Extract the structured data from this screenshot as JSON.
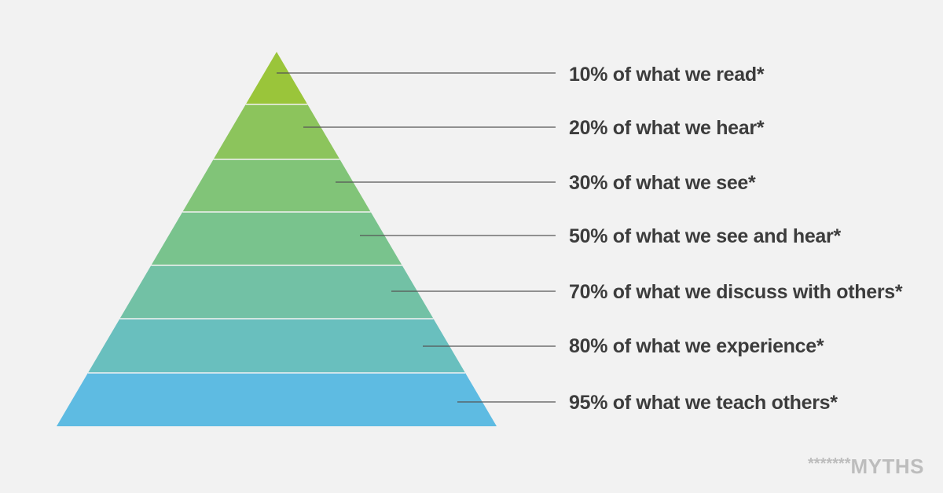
{
  "pyramid": {
    "levels": [
      {
        "label": "10% of what we read*",
        "color": "#9ac53a"
      },
      {
        "label": "20% of what we hear*",
        "color": "#8cc45c"
      },
      {
        "label": "30% of what we see*",
        "color": "#81c478"
      },
      {
        "label": "50% of what we see and hear*",
        "color": "#79c38d"
      },
      {
        "label": "70% of what we discuss with others*",
        "color": "#72c1a5"
      },
      {
        "label": "80% of what we experience*",
        "color": "#69bfbe"
      },
      {
        "label": "95% of what we teach others*",
        "color": "#5ebbe2"
      }
    ]
  },
  "watermark": {
    "stars": "*******",
    "text": "MYTHS"
  }
}
